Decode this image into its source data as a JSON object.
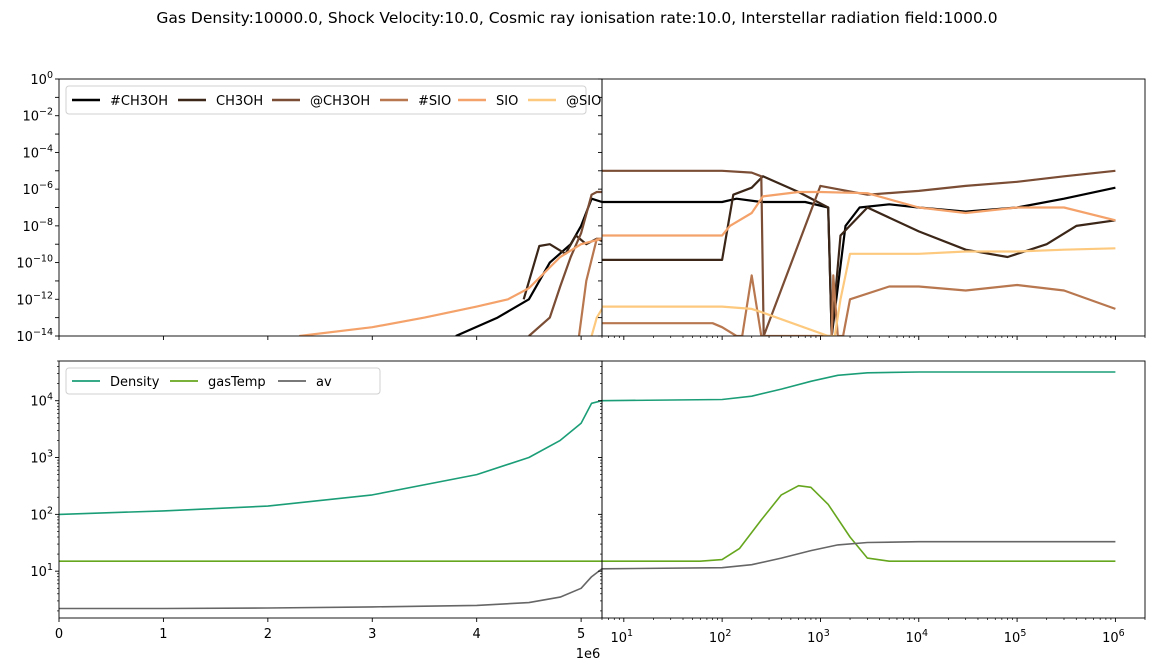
{
  "suptitle": "Gas Density:10000.0, Shock Velocity:10.0, Cosmic ray ionisation rate:10.0, Interstellar radiation field:1000.0",
  "chart_data": [
    {
      "panel": "top-left",
      "type": "line",
      "x_scale": "linear",
      "y_scale": "log",
      "xlim": [
        0,
        5200000.0
      ],
      "ylim": [
        1e-14,
        1
      ],
      "y_tick_labels": [
        "10^-14",
        "10^-12",
        "10^-10",
        "10^-8",
        "10^-6",
        "10^-4",
        "10^-2",
        "10^0"
      ],
      "legend_placement": "upper-left",
      "series": [
        {
          "name": "#CH3OH",
          "color": "#000000",
          "x": [
            3800000.0,
            4200000.0,
            4500000.0,
            4700000.0,
            4900000.0,
            5000000.0,
            5100000.0,
            5200000.0
          ],
          "y": [
            1e-14,
            1e-13,
            1e-12,
            1e-10,
            1e-09,
            1e-08,
            3e-07,
            2e-07
          ]
        },
        {
          "name": "CH3OH",
          "color": "#3b2618",
          "x": [
            4450000.0,
            4600000.0,
            4700000.0,
            4850000.0,
            4950000.0,
            5050000.0,
            5150000.0,
            5200000.0
          ],
          "y": [
            1e-12,
            8e-10,
            1e-09,
            3e-10,
            3e-09,
            1e-09,
            2e-09,
            1.5e-09
          ]
        },
        {
          "name": "@CH3OH",
          "color": "#7a4d34",
          "x": [
            4500000.0,
            4700000.0,
            4800000.0,
            4900000.0,
            5000000.0,
            5100000.0,
            5150000.0,
            5200000.0
          ],
          "y": [
            1e-14,
            1e-13,
            5e-12,
            2e-10,
            4e-09,
            5e-07,
            7e-07,
            7e-07
          ]
        },
        {
          "name": "#SIO",
          "color": "#b8774f",
          "x": [
            4980000.0,
            5050000.0,
            5150000.0,
            5200000.0
          ],
          "y": [
            1e-14,
            1e-11,
            2e-09,
            2e-09
          ]
        },
        {
          "name": "SIO",
          "color": "#f4a26a",
          "x": [
            2300000.0,
            3000000.0,
            3500000.0,
            4000000.0,
            4300000.0,
            4500000.0,
            4800000.0,
            5000000.0,
            5200000.0
          ],
          "y": [
            1e-14,
            3e-14,
            1e-13,
            4e-13,
            1e-12,
            4e-12,
            2e-10,
            1e-09,
            2e-09
          ]
        },
        {
          "name": "@SIO",
          "color": "#fdc97e",
          "x": [
            5100000.0,
            5150000.0,
            5200000.0
          ],
          "y": [
            1e-14,
            1e-13,
            3e-13
          ]
        }
      ]
    },
    {
      "panel": "top-right",
      "type": "line",
      "x_scale": "log",
      "y_scale": "log",
      "xlim": [
        6,
        2000000.0
      ],
      "ylim": [
        1e-14,
        1
      ],
      "series": [
        {
          "name": "#CH3OH",
          "color": "#000000",
          "x": [
            6,
            60,
            100,
            140,
            250,
            700,
            1200,
            1300,
            1800,
            2500,
            5000,
            10000,
            30000,
            100000,
            300000,
            1000000
          ],
          "y": [
            2e-07,
            2e-07,
            2e-07,
            3e-07,
            2e-07,
            2e-07,
            1e-07,
            1e-14,
            1e-08,
            1e-07,
            1.5e-07,
            1e-07,
            6e-08,
            1e-07,
            3e-07,
            1.2e-06
          ]
        },
        {
          "name": "CH3OH",
          "color": "#3b2618",
          "x": [
            6,
            80,
            100,
            130,
            200,
            260,
            600,
            1200,
            1300,
            1600,
            3000,
            10000,
            30000,
            80000,
            200000,
            400000,
            1000000
          ],
          "y": [
            1.4e-10,
            1.4e-10,
            1.4e-10,
            5e-07,
            1.2e-06,
            5e-06,
            7e-07,
            1e-07,
            1e-14,
            3e-09,
            1e-07,
            5e-09,
            5e-10,
            2e-10,
            1e-09,
            1e-08,
            2e-08
          ]
        },
        {
          "name": "@CH3OH",
          "color": "#7a4d34",
          "x": [
            6,
            100,
            200,
            250,
            265,
            1000,
            3000,
            10000,
            30000,
            100000,
            300000,
            1000000
          ],
          "y": [
            1e-05,
            1e-05,
            8e-06,
            5e-06,
            1e-14,
            1.5e-06,
            5e-07,
            8e-07,
            1.5e-06,
            2.5e-06,
            5e-06,
            1e-05
          ]
        },
        {
          "name": "#SIO",
          "color": "#b8774f",
          "x": [
            6,
            50,
            80,
            100,
            140,
            160,
            200,
            250,
            260,
            1300,
            1350,
            1500,
            1700,
            2000,
            5000,
            10000,
            30000,
            100000,
            300000,
            1000000
          ],
          "y": [
            5e-14,
            5e-14,
            5e-14,
            3e-14,
            1e-14,
            1e-14,
            2e-11,
            1e-14,
            1e-14,
            1e-14,
            2e-11,
            1e-14,
            1e-14,
            1e-12,
            5e-12,
            5e-12,
            3e-12,
            6e-12,
            3e-12,
            3e-13
          ]
        },
        {
          "name": "SIO",
          "color": "#f4a26a",
          "x": [
            6,
            100,
            120,
            200,
            260,
            600,
            1000,
            3000,
            10000,
            30000,
            100000,
            300000,
            1000000
          ],
          "y": [
            3e-09,
            3e-09,
            1e-08,
            5e-08,
            4e-07,
            7e-07,
            7e-07,
            6e-07,
            1e-07,
            5e-08,
            1e-07,
            1e-07,
            2e-08
          ]
        },
        {
          "name": "@SIO",
          "color": "#fdc97e",
          "x": [
            6,
            100,
            200,
            250,
            1200,
            1400,
            1600,
            2000,
            3000,
            10000,
            30000,
            100000,
            300000,
            1000000
          ],
          "y": [
            4e-13,
            4e-13,
            3e-13,
            2e-13,
            1e-14,
            1e-14,
            1e-12,
            3e-10,
            3e-10,
            3e-10,
            4e-10,
            4e-10,
            5e-10,
            6e-10
          ]
        }
      ]
    },
    {
      "panel": "bottom-left",
      "type": "line",
      "x_scale": "linear",
      "y_scale": "log",
      "xlim": [
        0,
        5200000.0
      ],
      "ylim": [
        1.5,
        50000
      ],
      "x_ticks": [
        0,
        1,
        2,
        3,
        4,
        5
      ],
      "x_offset_label": "1e6",
      "y_tick_labels": [
        "10^1",
        "10^2",
        "10^3",
        "10^4"
      ],
      "legend_placement": "upper-left",
      "series": [
        {
          "name": "Density",
          "color": "#1b9e77",
          "x": [
            0,
            1000000.0,
            2000000.0,
            3000000.0,
            4000000.0,
            4500000.0,
            4800000.0,
            5000000.0,
            5100000.0,
            5200000.0
          ],
          "y": [
            100,
            115,
            140,
            220,
            500,
            1000,
            2000,
            4000,
            9000,
            10000
          ]
        },
        {
          "name": "gasTemp",
          "color": "#66a61e",
          "x": [
            0,
            5200000.0
          ],
          "y": [
            15,
            15
          ]
        },
        {
          "name": "av",
          "color": "#666666",
          "x": [
            0,
            1000000.0,
            2000000.0,
            3000000.0,
            4000000.0,
            4500000.0,
            4800000.0,
            5000000.0,
            5100000.0,
            5200000.0
          ],
          "y": [
            2.2,
            2.2,
            2.25,
            2.35,
            2.5,
            2.8,
            3.5,
            5,
            8,
            11
          ]
        }
      ]
    },
    {
      "panel": "bottom-right",
      "type": "line",
      "x_scale": "log",
      "y_scale": "log",
      "xlim": [
        6,
        2000000.0
      ],
      "ylim": [
        1.5,
        50000
      ],
      "x_tick_labels": [
        "10^1",
        "10^2",
        "10^3",
        "10^4",
        "10^5",
        "10^6"
      ],
      "series": [
        {
          "name": "Density",
          "color": "#1b9e77",
          "x": [
            6,
            100,
            200,
            400,
            800,
            1500,
            3000,
            10000,
            100000,
            1000000
          ],
          "y": [
            10000,
            10500,
            12000,
            16000,
            22000,
            28000,
            31000,
            32000,
            32000,
            32000
          ]
        },
        {
          "name": "gasTemp",
          "color": "#66a61e",
          "x": [
            6,
            60,
            100,
            150,
            250,
            400,
            600,
            800,
            1200,
            2000,
            3000,
            5000,
            10000,
            100000,
            1000000
          ],
          "y": [
            15,
            15,
            16,
            25,
            80,
            220,
            320,
            300,
            150,
            40,
            17,
            15,
            15,
            15,
            15
          ]
        },
        {
          "name": "av",
          "color": "#666666",
          "x": [
            6,
            100,
            200,
            400,
            800,
            1500,
            3000,
            10000,
            100000,
            1000000
          ],
          "y": [
            11,
            11.5,
            13,
            17,
            23,
            29,
            32,
            33,
            33,
            33
          ]
        }
      ]
    }
  ]
}
